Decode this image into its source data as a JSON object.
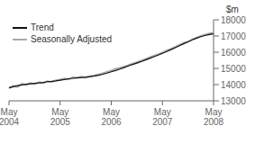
{
  "chart_data": {
    "type": "line",
    "ylabel": "$m",
    "categories": [
      "May\n2004",
      null,
      null,
      null,
      null,
      null,
      null,
      null,
      null,
      null,
      null,
      null,
      "May\n2005",
      null,
      null,
      null,
      null,
      null,
      null,
      null,
      null,
      null,
      null,
      null,
      "May\n2006",
      null,
      null,
      null,
      null,
      null,
      null,
      null,
      null,
      null,
      null,
      null,
      "May\n2007",
      null,
      null,
      null,
      null,
      null,
      null,
      null,
      null,
      null,
      null,
      null,
      "May\n2008"
    ],
    "series": [
      {
        "name": "Seasonally Adjusted",
        "color": "#aaaaaa",
        "values": [
          13780,
          13920,
          13850,
          14050,
          13980,
          14100,
          14030,
          14150,
          14080,
          14200,
          14160,
          14270,
          14310,
          14380,
          14320,
          14450,
          14400,
          14480,
          14420,
          14510,
          14560,
          14620,
          14700,
          14780,
          14860,
          14980,
          15030,
          15120,
          15200,
          15300,
          15380,
          15480,
          15580,
          15680,
          15780,
          15880,
          15980,
          16100,
          16200,
          16320,
          16450,
          16580,
          16650,
          16780,
          16900,
          17000,
          17080,
          17150,
          17200
        ]
      },
      {
        "name": "Trend",
        "color": "#111111",
        "values": [
          13800,
          13870,
          13940,
          13980,
          14020,
          14050,
          14080,
          14100,
          14130,
          14180,
          14200,
          14230,
          14270,
          14310,
          14360,
          14390,
          14420,
          14440,
          14460,
          14490,
          14530,
          14580,
          14640,
          14710,
          14790,
          14870,
          14960,
          15050,
          15150,
          15240,
          15330,
          15420,
          15520,
          15620,
          15720,
          15820,
          15930,
          16040,
          16160,
          16280,
          16400,
          16520,
          16640,
          16760,
          16870,
          16960,
          17030,
          17090,
          17130
        ]
      }
    ],
    "ylim": [
      13000,
      18000
    ],
    "yticks": [
      13000,
      14000,
      15000,
      16000,
      17000,
      18000
    ],
    "grid": false,
    "legend": "upper left"
  }
}
